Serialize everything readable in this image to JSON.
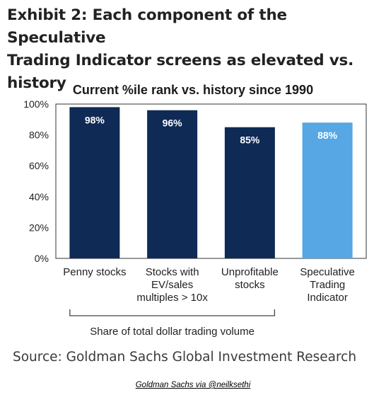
{
  "exhibit": {
    "title_line1": "Exhibit 2: Each component of the Speculative",
    "title_line2": "Trading Indicator screens as elevated vs. history"
  },
  "chart_data": {
    "type": "bar",
    "title": "Current %ile rank vs. history since 1990",
    "categories": [
      [
        "Penny stocks"
      ],
      [
        "Stocks with",
        "EV/sales",
        "multiples > 10x"
      ],
      [
        "Unprofitable",
        "stocks"
      ],
      [
        "Speculative",
        "Trading",
        "Indicator"
      ]
    ],
    "values": [
      98,
      96,
      85,
      88
    ],
    "value_labels": [
      "98%",
      "96%",
      "85%",
      "88%"
    ],
    "bar_colors": [
      "#0f2a55",
      "#0f2a55",
      "#0f2a55",
      "#56a7e3"
    ],
    "ylim": [
      0,
      100
    ],
    "yticks": [
      0,
      20,
      40,
      60,
      80,
      100
    ],
    "ytick_labels": [
      "0%",
      "20%",
      "40%",
      "60%",
      "80%",
      "100%"
    ],
    "bracket_label": "Share of total dollar trading volume"
  },
  "source": "Source: Goldman Sachs Global Investment Research",
  "credit": "Goldman Sachs via @neilksethi"
}
